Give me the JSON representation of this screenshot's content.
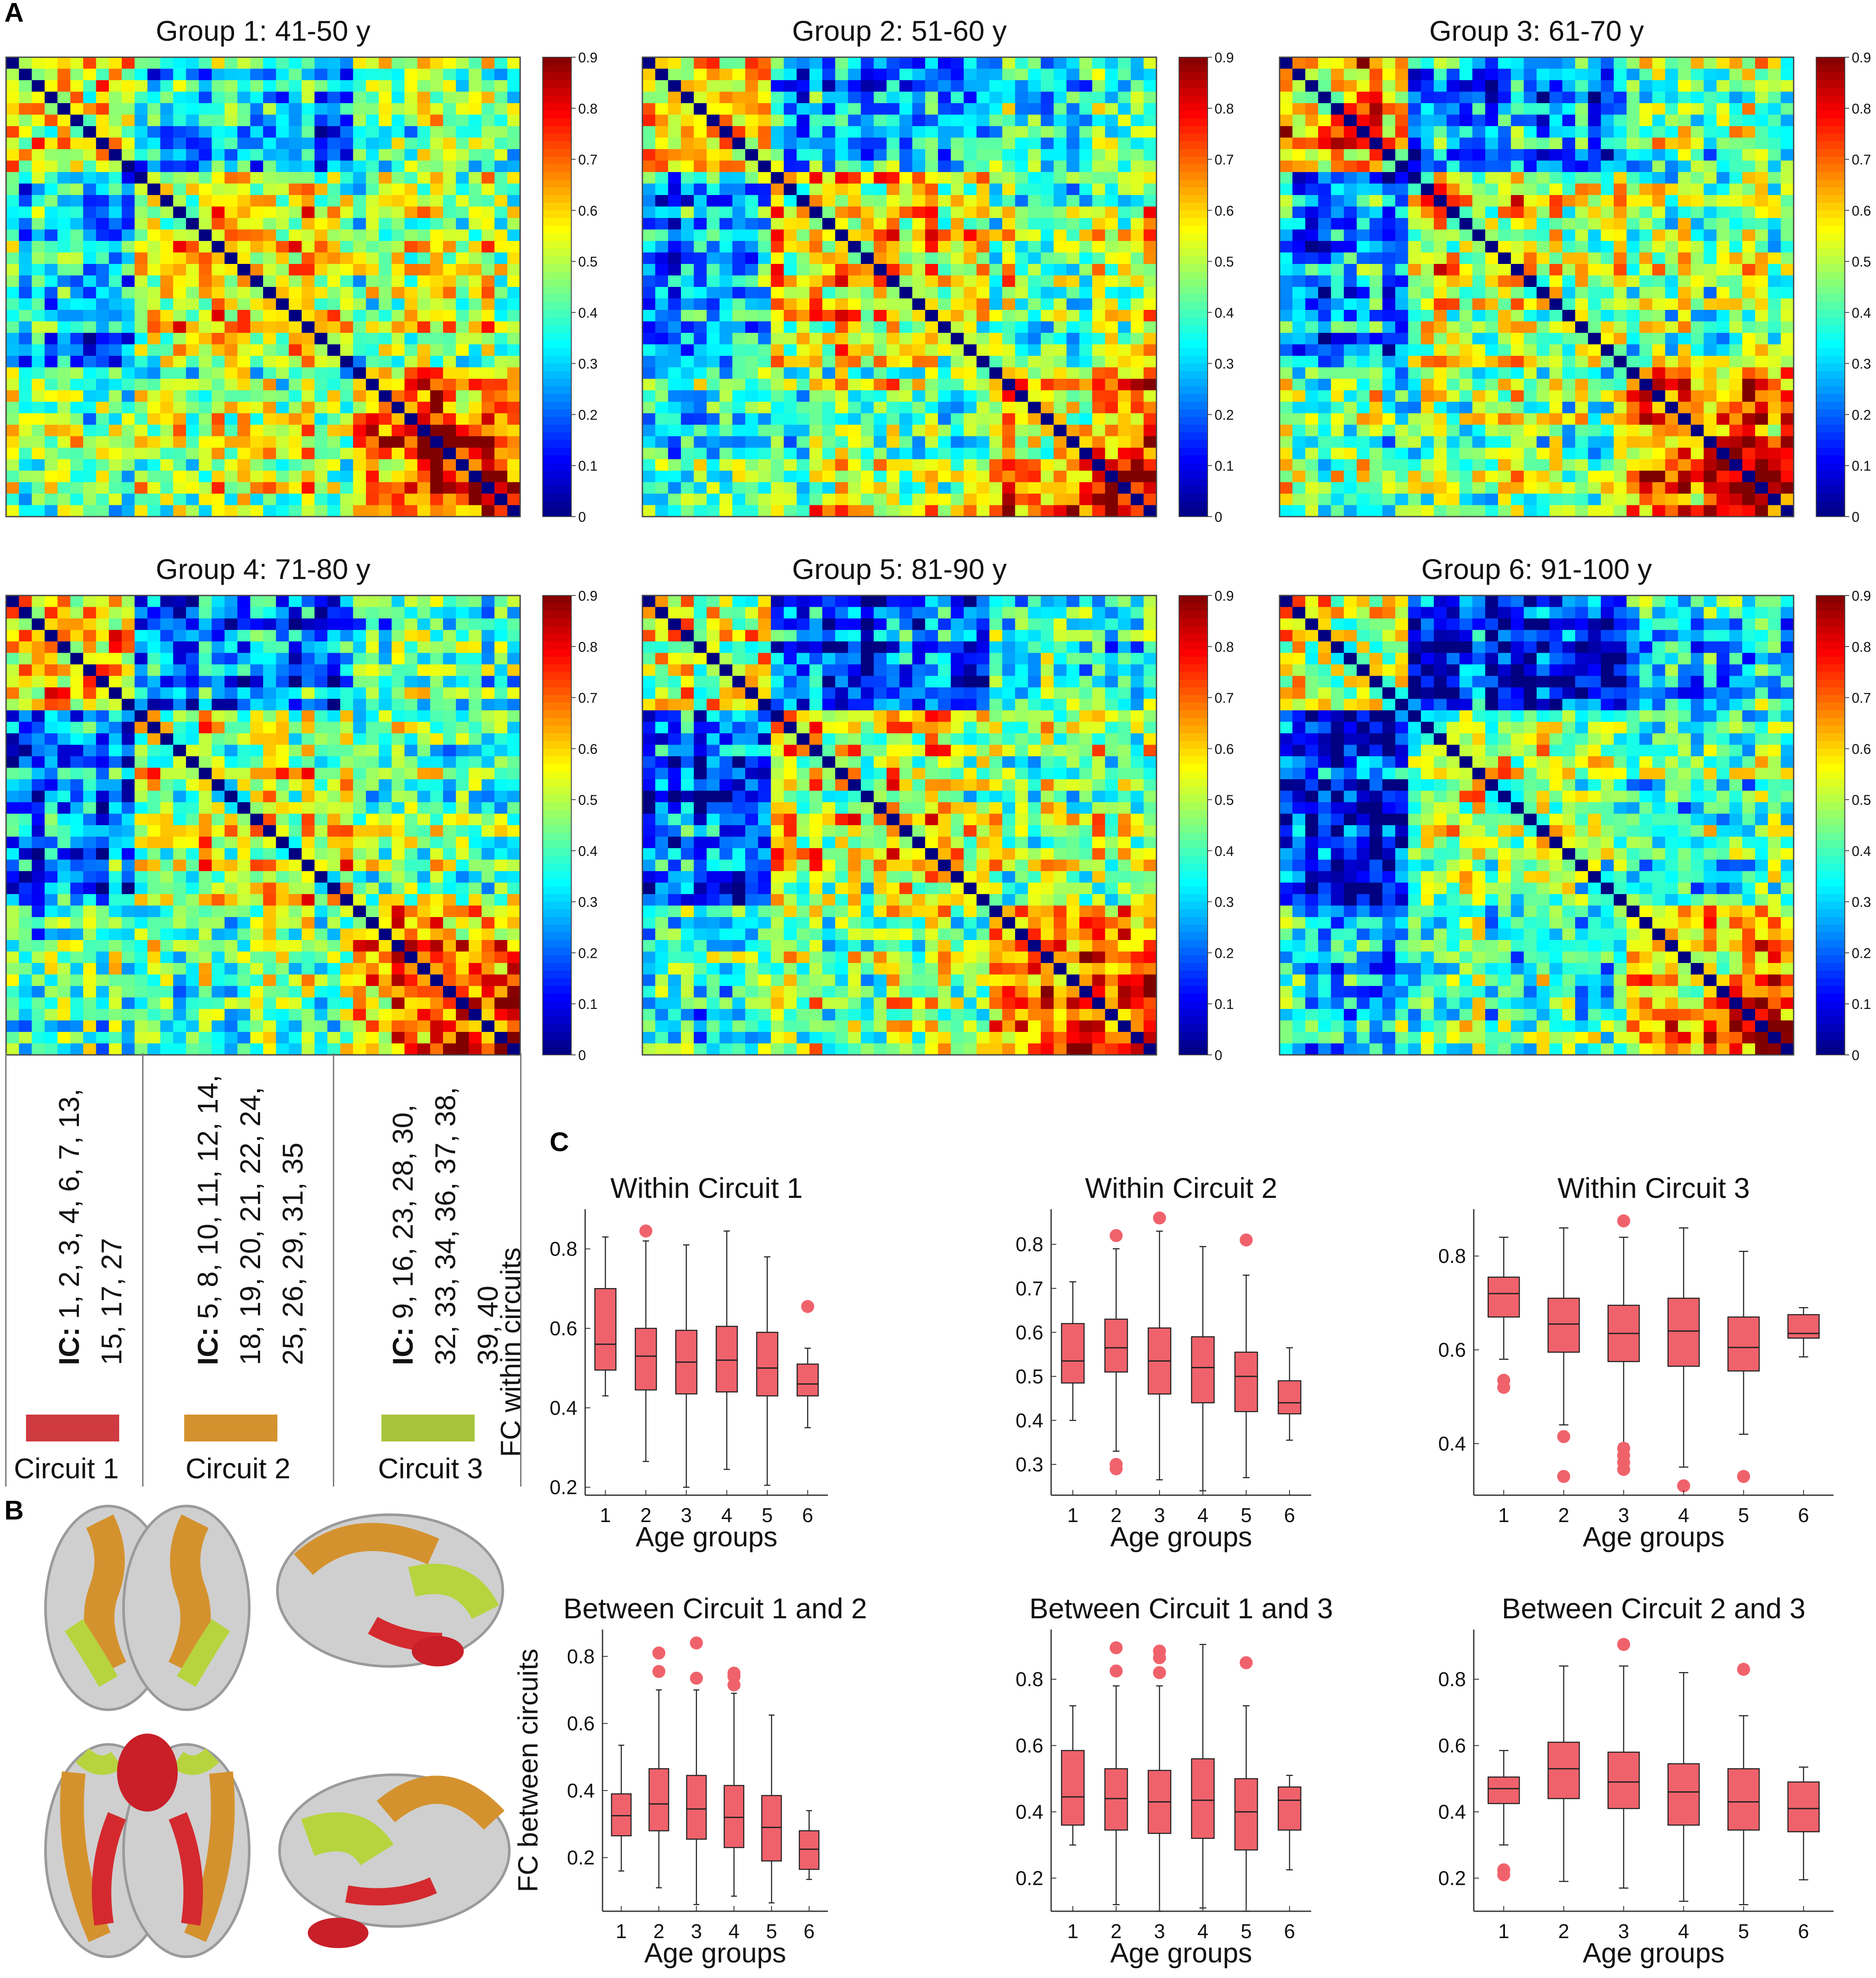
{
  "panels": {
    "a": "A",
    "b": "B",
    "c": "C"
  },
  "colormap": {
    "ticks": [
      "0",
      "0.1",
      "0.2",
      "0.3",
      "0.4",
      "0.5",
      "0.6",
      "0.7",
      "0.8",
      "0.9"
    ],
    "min": 0,
    "max": 0.9
  },
  "circuits": [
    {
      "name": "Circuit 1",
      "ic_label": "IC:",
      "ic_list": "1, 2, 3, 4, 6, 7, 13, 15, 17, 27",
      "color": "#cf3b40"
    },
    {
      "name": "Circuit 2",
      "ic_label": "IC:",
      "ic_list": "5, 8, 10, 11, 12, 14, 18, 19, 20, 21, 22, 24, 25, 26, 29, 31, 35",
      "color": "#d4922e"
    },
    {
      "name": "Circuit 3",
      "ic_label": "IC:",
      "ic_list": "9, 16, 23, 28, 30, 32, 33, 34, 36, 37, 38, 39, 40",
      "color": "#a8c43a"
    }
  ],
  "chart_data": [
    {
      "type": "heatmap",
      "title": "Group 1: 41-50 y",
      "n": 40,
      "clim": [
        0,
        0.9
      ]
    },
    {
      "type": "heatmap",
      "title": "Group 2: 51-60 y",
      "n": 40,
      "clim": [
        0,
        0.9
      ]
    },
    {
      "type": "heatmap",
      "title": "Group 3: 61-70 y",
      "n": 40,
      "clim": [
        0,
        0.9
      ]
    },
    {
      "type": "heatmap",
      "title": "Group 4: 71-80 y",
      "n": 40,
      "clim": [
        0,
        0.9
      ]
    },
    {
      "type": "heatmap",
      "title": "Group 5: 81-90 y",
      "n": 40,
      "clim": [
        0,
        0.9
      ]
    },
    {
      "type": "heatmap",
      "title": "Group 6: 91-100 y",
      "n": 40,
      "clim": [
        0,
        0.9
      ]
    },
    {
      "type": "box",
      "title": "Within Circuit 1",
      "xlabel": "Age groups",
      "ylabel": "FC within circuits",
      "categories": [
        "1",
        "2",
        "3",
        "4",
        "5",
        "6"
      ],
      "ylim": [
        0.18,
        0.9
      ],
      "yticks": [
        "0.2",
        "0.4",
        "0.6",
        "0.8"
      ],
      "boxes": [
        {
          "min": 0.43,
          "q1": 0.495,
          "median": 0.56,
          "q3": 0.7,
          "max": 0.83,
          "outliers": []
        },
        {
          "min": 0.265,
          "q1": 0.445,
          "median": 0.53,
          "q3": 0.6,
          "max": 0.82,
          "outliers": [
            0.845
          ]
        },
        {
          "min": 0.2,
          "q1": 0.435,
          "median": 0.515,
          "q3": 0.595,
          "max": 0.81,
          "outliers": []
        },
        {
          "min": 0.245,
          "q1": 0.44,
          "median": 0.52,
          "q3": 0.605,
          "max": 0.845,
          "outliers": []
        },
        {
          "min": 0.205,
          "q1": 0.43,
          "median": 0.5,
          "q3": 0.59,
          "max": 0.78,
          "outliers": []
        },
        {
          "min": 0.35,
          "q1": 0.43,
          "median": 0.46,
          "q3": 0.51,
          "max": 0.55,
          "outliers": [
            0.655
          ]
        }
      ]
    },
    {
      "type": "box",
      "title": "Within Circuit 2",
      "xlabel": "Age groups",
      "ylabel": "",
      "categories": [
        "1",
        "2",
        "3",
        "4",
        "5",
        "6"
      ],
      "ylim": [
        0.23,
        0.88
      ],
      "yticks": [
        "0.3",
        "0.4",
        "0.5",
        "0.6",
        "0.7",
        "0.8"
      ],
      "boxes": [
        {
          "min": 0.4,
          "q1": 0.485,
          "median": 0.535,
          "q3": 0.62,
          "max": 0.715,
          "outliers": []
        },
        {
          "min": 0.33,
          "q1": 0.51,
          "median": 0.565,
          "q3": 0.63,
          "max": 0.79,
          "outliers": [
            0.82,
            0.3,
            0.29
          ]
        },
        {
          "min": 0.265,
          "q1": 0.46,
          "median": 0.535,
          "q3": 0.61,
          "max": 0.83,
          "outliers": [
            0.86
          ]
        },
        {
          "min": 0.24,
          "q1": 0.44,
          "median": 0.52,
          "q3": 0.59,
          "max": 0.795,
          "outliers": []
        },
        {
          "min": 0.27,
          "q1": 0.42,
          "median": 0.5,
          "q3": 0.555,
          "max": 0.73,
          "outliers": [
            0.81
          ]
        },
        {
          "min": 0.355,
          "q1": 0.415,
          "median": 0.44,
          "q3": 0.49,
          "max": 0.565,
          "outliers": []
        }
      ]
    },
    {
      "type": "box",
      "title": "Within Circuit 3",
      "xlabel": "Age groups",
      "ylabel": "",
      "categories": [
        "1",
        "2",
        "3",
        "4",
        "5",
        "6"
      ],
      "ylim": [
        0.29,
        0.9
      ],
      "yticks": [
        "0.4",
        "0.6",
        "0.8"
      ],
      "boxes": [
        {
          "min": 0.58,
          "q1": 0.67,
          "median": 0.72,
          "q3": 0.755,
          "max": 0.84,
          "outliers": [
            0.535,
            0.52
          ]
        },
        {
          "min": 0.44,
          "q1": 0.595,
          "median": 0.655,
          "q3": 0.71,
          "max": 0.86,
          "outliers": [
            0.415,
            0.33
          ]
        },
        {
          "min": 0.4,
          "q1": 0.575,
          "median": 0.635,
          "q3": 0.695,
          "max": 0.84,
          "outliers": [
            0.875,
            0.39,
            0.375,
            0.36,
            0.345
          ]
        },
        {
          "min": 0.35,
          "q1": 0.565,
          "median": 0.64,
          "q3": 0.71,
          "max": 0.86,
          "outliers": [
            0.31
          ]
        },
        {
          "min": 0.42,
          "q1": 0.555,
          "median": 0.605,
          "q3": 0.67,
          "max": 0.81,
          "outliers": [
            0.33
          ]
        },
        {
          "min": 0.585,
          "q1": 0.625,
          "median": 0.635,
          "q3": 0.675,
          "max": 0.69,
          "outliers": []
        }
      ]
    },
    {
      "type": "box",
      "title": "Between Circuit 1 and 2",
      "xlabel": "Age groups",
      "ylabel": "FC between circuits",
      "categories": [
        "1",
        "2",
        "3",
        "4",
        "5",
        "6"
      ],
      "ylim": [
        0.04,
        0.88
      ],
      "yticks": [
        "0.2",
        "0.4",
        "0.6",
        "0.8"
      ],
      "boxes": [
        {
          "min": 0.16,
          "q1": 0.265,
          "median": 0.325,
          "q3": 0.39,
          "max": 0.535,
          "outliers": []
        },
        {
          "min": 0.11,
          "q1": 0.28,
          "median": 0.36,
          "q3": 0.465,
          "max": 0.7,
          "outliers": [
            0.81,
            0.755
          ]
        },
        {
          "min": 0.06,
          "q1": 0.255,
          "median": 0.345,
          "q3": 0.445,
          "max": 0.7,
          "outliers": [
            0.84,
            0.735
          ]
        },
        {
          "min": 0.085,
          "q1": 0.23,
          "median": 0.32,
          "q3": 0.415,
          "max": 0.69,
          "outliers": [
            0.75,
            0.74,
            0.715
          ]
        },
        {
          "min": 0.065,
          "q1": 0.19,
          "median": 0.29,
          "q3": 0.385,
          "max": 0.625,
          "outliers": []
        },
        {
          "min": 0.135,
          "q1": 0.165,
          "median": 0.225,
          "q3": 0.28,
          "max": 0.34,
          "outliers": []
        }
      ]
    },
    {
      "type": "box",
      "title": "Between Circuit 1 and 3",
      "xlabel": "Age groups",
      "ylabel": "",
      "categories": [
        "1",
        "2",
        "3",
        "4",
        "5",
        "6"
      ],
      "ylim": [
        0.1,
        0.95
      ],
      "yticks": [
        "0.2",
        "0.4",
        "0.6",
        "0.8"
      ],
      "boxes": [
        {
          "min": 0.3,
          "q1": 0.36,
          "median": 0.445,
          "q3": 0.585,
          "max": 0.72,
          "outliers": []
        },
        {
          "min": 0.12,
          "q1": 0.345,
          "median": 0.44,
          "q3": 0.53,
          "max": 0.78,
          "outliers": [
            0.895,
            0.825
          ]
        },
        {
          "min": 0.1,
          "q1": 0.335,
          "median": 0.43,
          "q3": 0.525,
          "max": 0.78,
          "outliers": [
            0.885,
            0.865,
            0.82
          ]
        },
        {
          "min": 0.11,
          "q1": 0.32,
          "median": 0.435,
          "q3": 0.56,
          "max": 0.905,
          "outliers": []
        },
        {
          "min": 0.1,
          "q1": 0.285,
          "median": 0.4,
          "q3": 0.5,
          "max": 0.72,
          "outliers": [
            0.85
          ]
        },
        {
          "min": 0.225,
          "q1": 0.345,
          "median": 0.435,
          "q3": 0.475,
          "max": 0.51,
          "outliers": []
        }
      ]
    },
    {
      "type": "box",
      "title": "Between Circuit 2 and 3",
      "xlabel": "Age groups",
      "ylabel": "",
      "categories": [
        "1",
        "2",
        "3",
        "4",
        "5",
        "6"
      ],
      "ylim": [
        0.1,
        0.95
      ],
      "yticks": [
        "0.2",
        "0.4",
        "0.6",
        "0.8"
      ],
      "boxes": [
        {
          "min": 0.3,
          "q1": 0.425,
          "median": 0.47,
          "q3": 0.505,
          "max": 0.585,
          "outliers": [
            0.225,
            0.21
          ]
        },
        {
          "min": 0.19,
          "q1": 0.44,
          "median": 0.53,
          "q3": 0.61,
          "max": 0.84,
          "outliers": []
        },
        {
          "min": 0.17,
          "q1": 0.41,
          "median": 0.49,
          "q3": 0.58,
          "max": 0.84,
          "outliers": [
            0.905
          ]
        },
        {
          "min": 0.13,
          "q1": 0.36,
          "median": 0.46,
          "q3": 0.545,
          "max": 0.82,
          "outliers": []
        },
        {
          "min": 0.12,
          "q1": 0.345,
          "median": 0.43,
          "q3": 0.53,
          "max": 0.69,
          "outliers": [
            0.83
          ]
        },
        {
          "min": 0.195,
          "q1": 0.34,
          "median": 0.41,
          "q3": 0.49,
          "max": 0.535,
          "outliers": []
        }
      ]
    }
  ]
}
